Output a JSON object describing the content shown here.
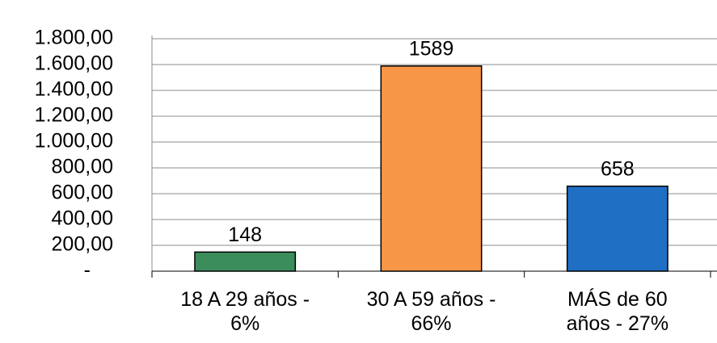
{
  "chart_data": {
    "type": "bar",
    "categories": [
      "18 A 29 años - 6%",
      "30 A 59 años - 66%",
      "MÁS de 60 años - 27%"
    ],
    "values": [
      148,
      1589,
      658
    ],
    "colors": [
      "#3b8d5c",
      "#f79646",
      "#1f6fc4"
    ],
    "ylim": [
      0,
      1800
    ],
    "yticks": [
      {
        "value": 0,
        "label": "-"
      },
      {
        "value": 200,
        "label": "200,00"
      },
      {
        "value": 400,
        "label": "400,00"
      },
      {
        "value": 600,
        "label": "600,00"
      },
      {
        "value": 800,
        "label": "800,00"
      },
      {
        "value": 1000,
        "label": "1.000,00"
      },
      {
        "value": 1200,
        "label": "1.200,00"
      },
      {
        "value": 1400,
        "label": "1.400,00"
      },
      {
        "value": 1600,
        "label": "1.600,00"
      },
      {
        "value": 1800,
        "label": "1.800,00"
      }
    ],
    "grid": true
  }
}
